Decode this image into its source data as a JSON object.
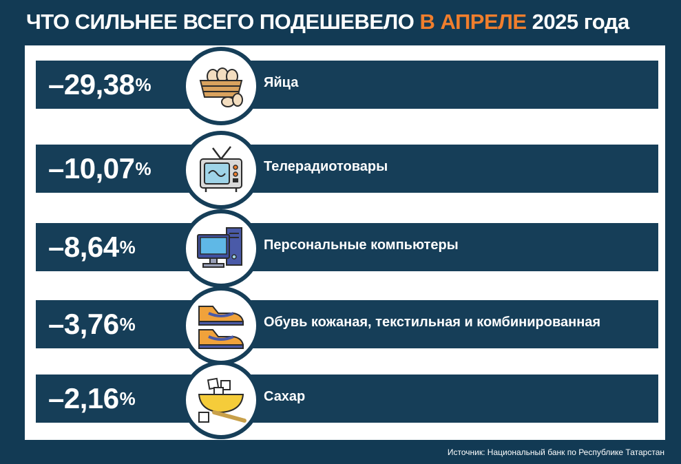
{
  "header": {
    "title_start": "ЧТО СИЛЬНЕЕ ВСЕГО ПОДЕШЕВЕЛО ",
    "title_accent": "В АПРЕЛЕ",
    "title_end": " 2025 года"
  },
  "colors": {
    "background": "#123a54",
    "row": "#163e58",
    "accent": "#f07e2d",
    "panel": "#ffffff"
  },
  "chart_data": {
    "type": "table",
    "title": "ЧТО СИЛЬНЕЕ ВСЕГО ПОДЕШЕВЕЛО В АПРЕЛЕ 2025 года",
    "unit": "%",
    "rows": [
      {
        "value": "–29,38",
        "label": "Яйца",
        "icon": "eggs-basket-icon"
      },
      {
        "value": "–10,07",
        "label": "Телерадиотовары",
        "icon": "tv-icon"
      },
      {
        "value": "–8,64",
        "label": "Персональные компьютеры",
        "icon": "computer-icon"
      },
      {
        "value": "–3,76",
        "label": "Обувь кожаная, текстильная и комбинированная",
        "icon": "shoes-icon"
      },
      {
        "value": "–2,16",
        "label": "Сахар",
        "icon": "sugar-icon"
      }
    ]
  },
  "footer": {
    "source": "Источник: Национальный банк по Республике Татарстан"
  }
}
